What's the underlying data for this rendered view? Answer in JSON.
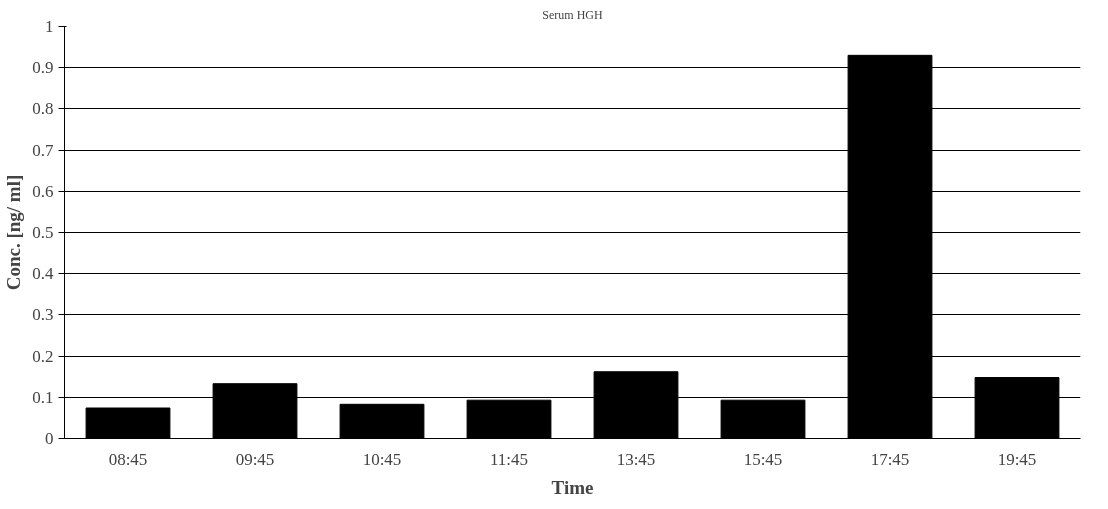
{
  "chart_data": {
    "type": "bar",
    "title": "Serum HGH",
    "xlabel": "Time",
    "ylabel": "Conc. [ng/ ml]",
    "categories": [
      "08:45",
      "09:45",
      "10:45",
      "11:45",
      "13:45",
      "15:45",
      "17:45",
      "19:45"
    ],
    "values": [
      0.074,
      0.133,
      0.083,
      0.093,
      0.162,
      0.093,
      0.93,
      0.148
    ],
    "color": "#000000",
    "ylim": [
      0,
      1
    ],
    "yticks": [
      0,
      {
        "value": 0.1,
        "label": "0.1"
      },
      {
        "value": 0.2,
        "label": "0.2"
      },
      {
        "value": 0.3,
        "label": "0.3"
      },
      {
        "value": 0.4,
        "label": "0.4"
      },
      {
        "value": 0.5,
        "label": "0.5"
      },
      {
        "value": 0.6,
        "label": "0.6"
      },
      {
        "value": 0.7,
        "label": "0.7"
      },
      {
        "value": 0.8,
        "label": "0.8"
      },
      {
        "value": 0.9,
        "label": "0.9"
      },
      1
    ],
    "grid": "y"
  }
}
